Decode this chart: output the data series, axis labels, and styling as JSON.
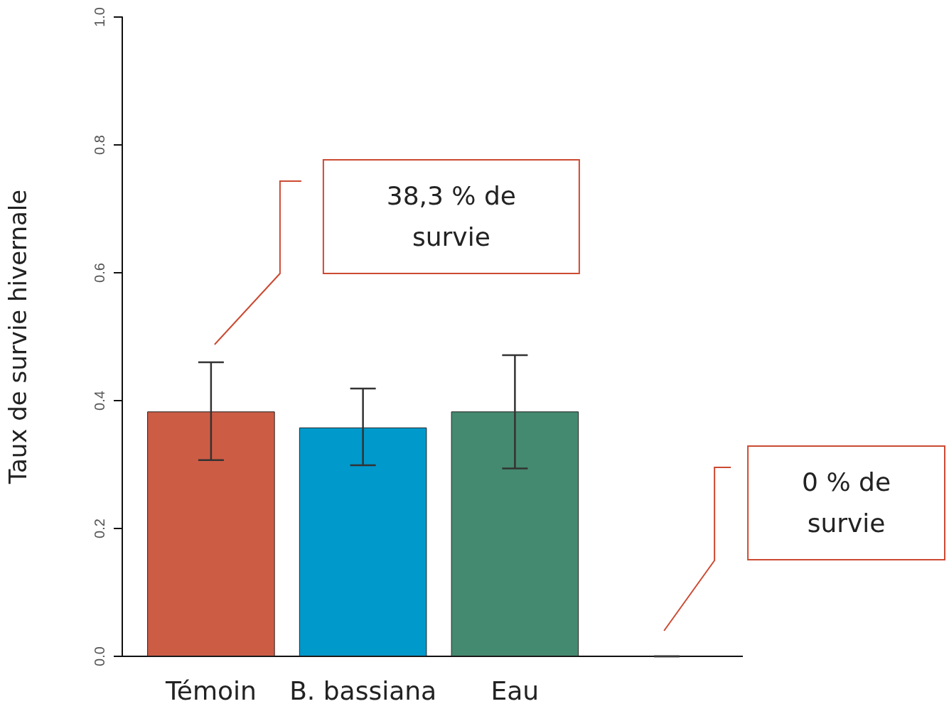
{
  "chart_data": {
    "type": "bar",
    "ylabel": "Taux de survie hivernale",
    "categories": [
      "Témoin",
      "B. bassiana",
      "Eau",
      null
    ],
    "values": [
      0.383,
      0.358,
      0.383,
      0
    ],
    "colors": [
      "#cd5c45",
      "#0099cc",
      "#448a70",
      "#448a70"
    ],
    "errors": [
      [
        0.307,
        0.46
      ],
      [
        0.299,
        0.419
      ],
      [
        0.294,
        0.471
      ],
      [
        0,
        0
      ]
    ],
    "ylim": [
      0,
      1
    ],
    "yticks": [
      {
        "value": 0,
        "label": "0.0"
      },
      0.2,
      0.4,
      0.6,
      0.8,
      {
        "value": 1,
        "label": "1.0"
      }
    ],
    "grid": false,
    "annotations": [
      "38,3 % de survie",
      "0 % de survie"
    ]
  }
}
